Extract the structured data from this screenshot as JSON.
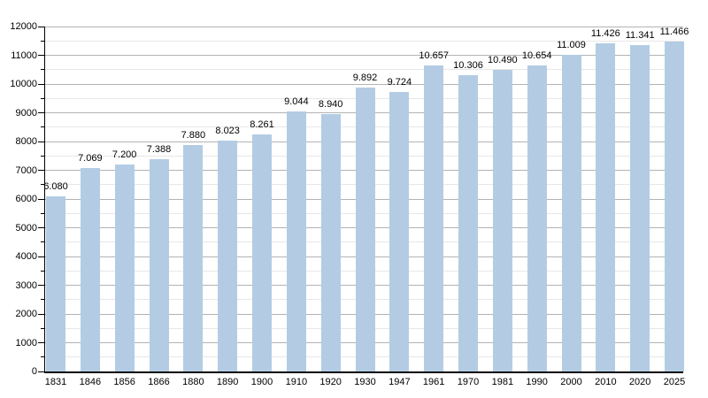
{
  "chart_data": {
    "type": "bar",
    "title": "",
    "xlabel": "",
    "ylabel": "",
    "categories": [
      "1831",
      "1846",
      "1856",
      "1866",
      "1880",
      "1890",
      "1900",
      "1910",
      "1920",
      "1930",
      "1947",
      "1961",
      "1970",
      "1981",
      "1990",
      "2000",
      "2010",
      "2020",
      "2025"
    ],
    "values": [
      6080,
      7069,
      7200,
      7388,
      7880,
      8023,
      8261,
      9044,
      8940,
      9892,
      9724,
      10657,
      10306,
      10490,
      10654,
      11009,
      11426,
      11341,
      11466
    ],
    "bar_value_labels": [
      "6.080",
      "7.069",
      "7.200",
      "7.388",
      "7.880",
      "8.023",
      "8.261",
      "9.044",
      "8.940",
      "9.892",
      "9.724",
      "10.657",
      "10.306",
      "10.490",
      "10.654",
      "11.009",
      "11.426",
      "11.341",
      "11.466"
    ],
    "y_tick_labels": [
      "0",
      "1000",
      "2000",
      "3000",
      "4000",
      "5000",
      "6000",
      "7000",
      "8000",
      "9000",
      "10000",
      "11000",
      "12000"
    ],
    "ylim": [
      0,
      12000
    ],
    "y_major_step": 1000,
    "y_minor_step": 500,
    "grid": true,
    "legend_position": "none",
    "colors": {
      "bar_fill": "#b3cce4",
      "major_grid": "#b3b3b3",
      "minor_grid": "#e7e7e7",
      "axis": "#000000",
      "text": "#000000"
    }
  }
}
